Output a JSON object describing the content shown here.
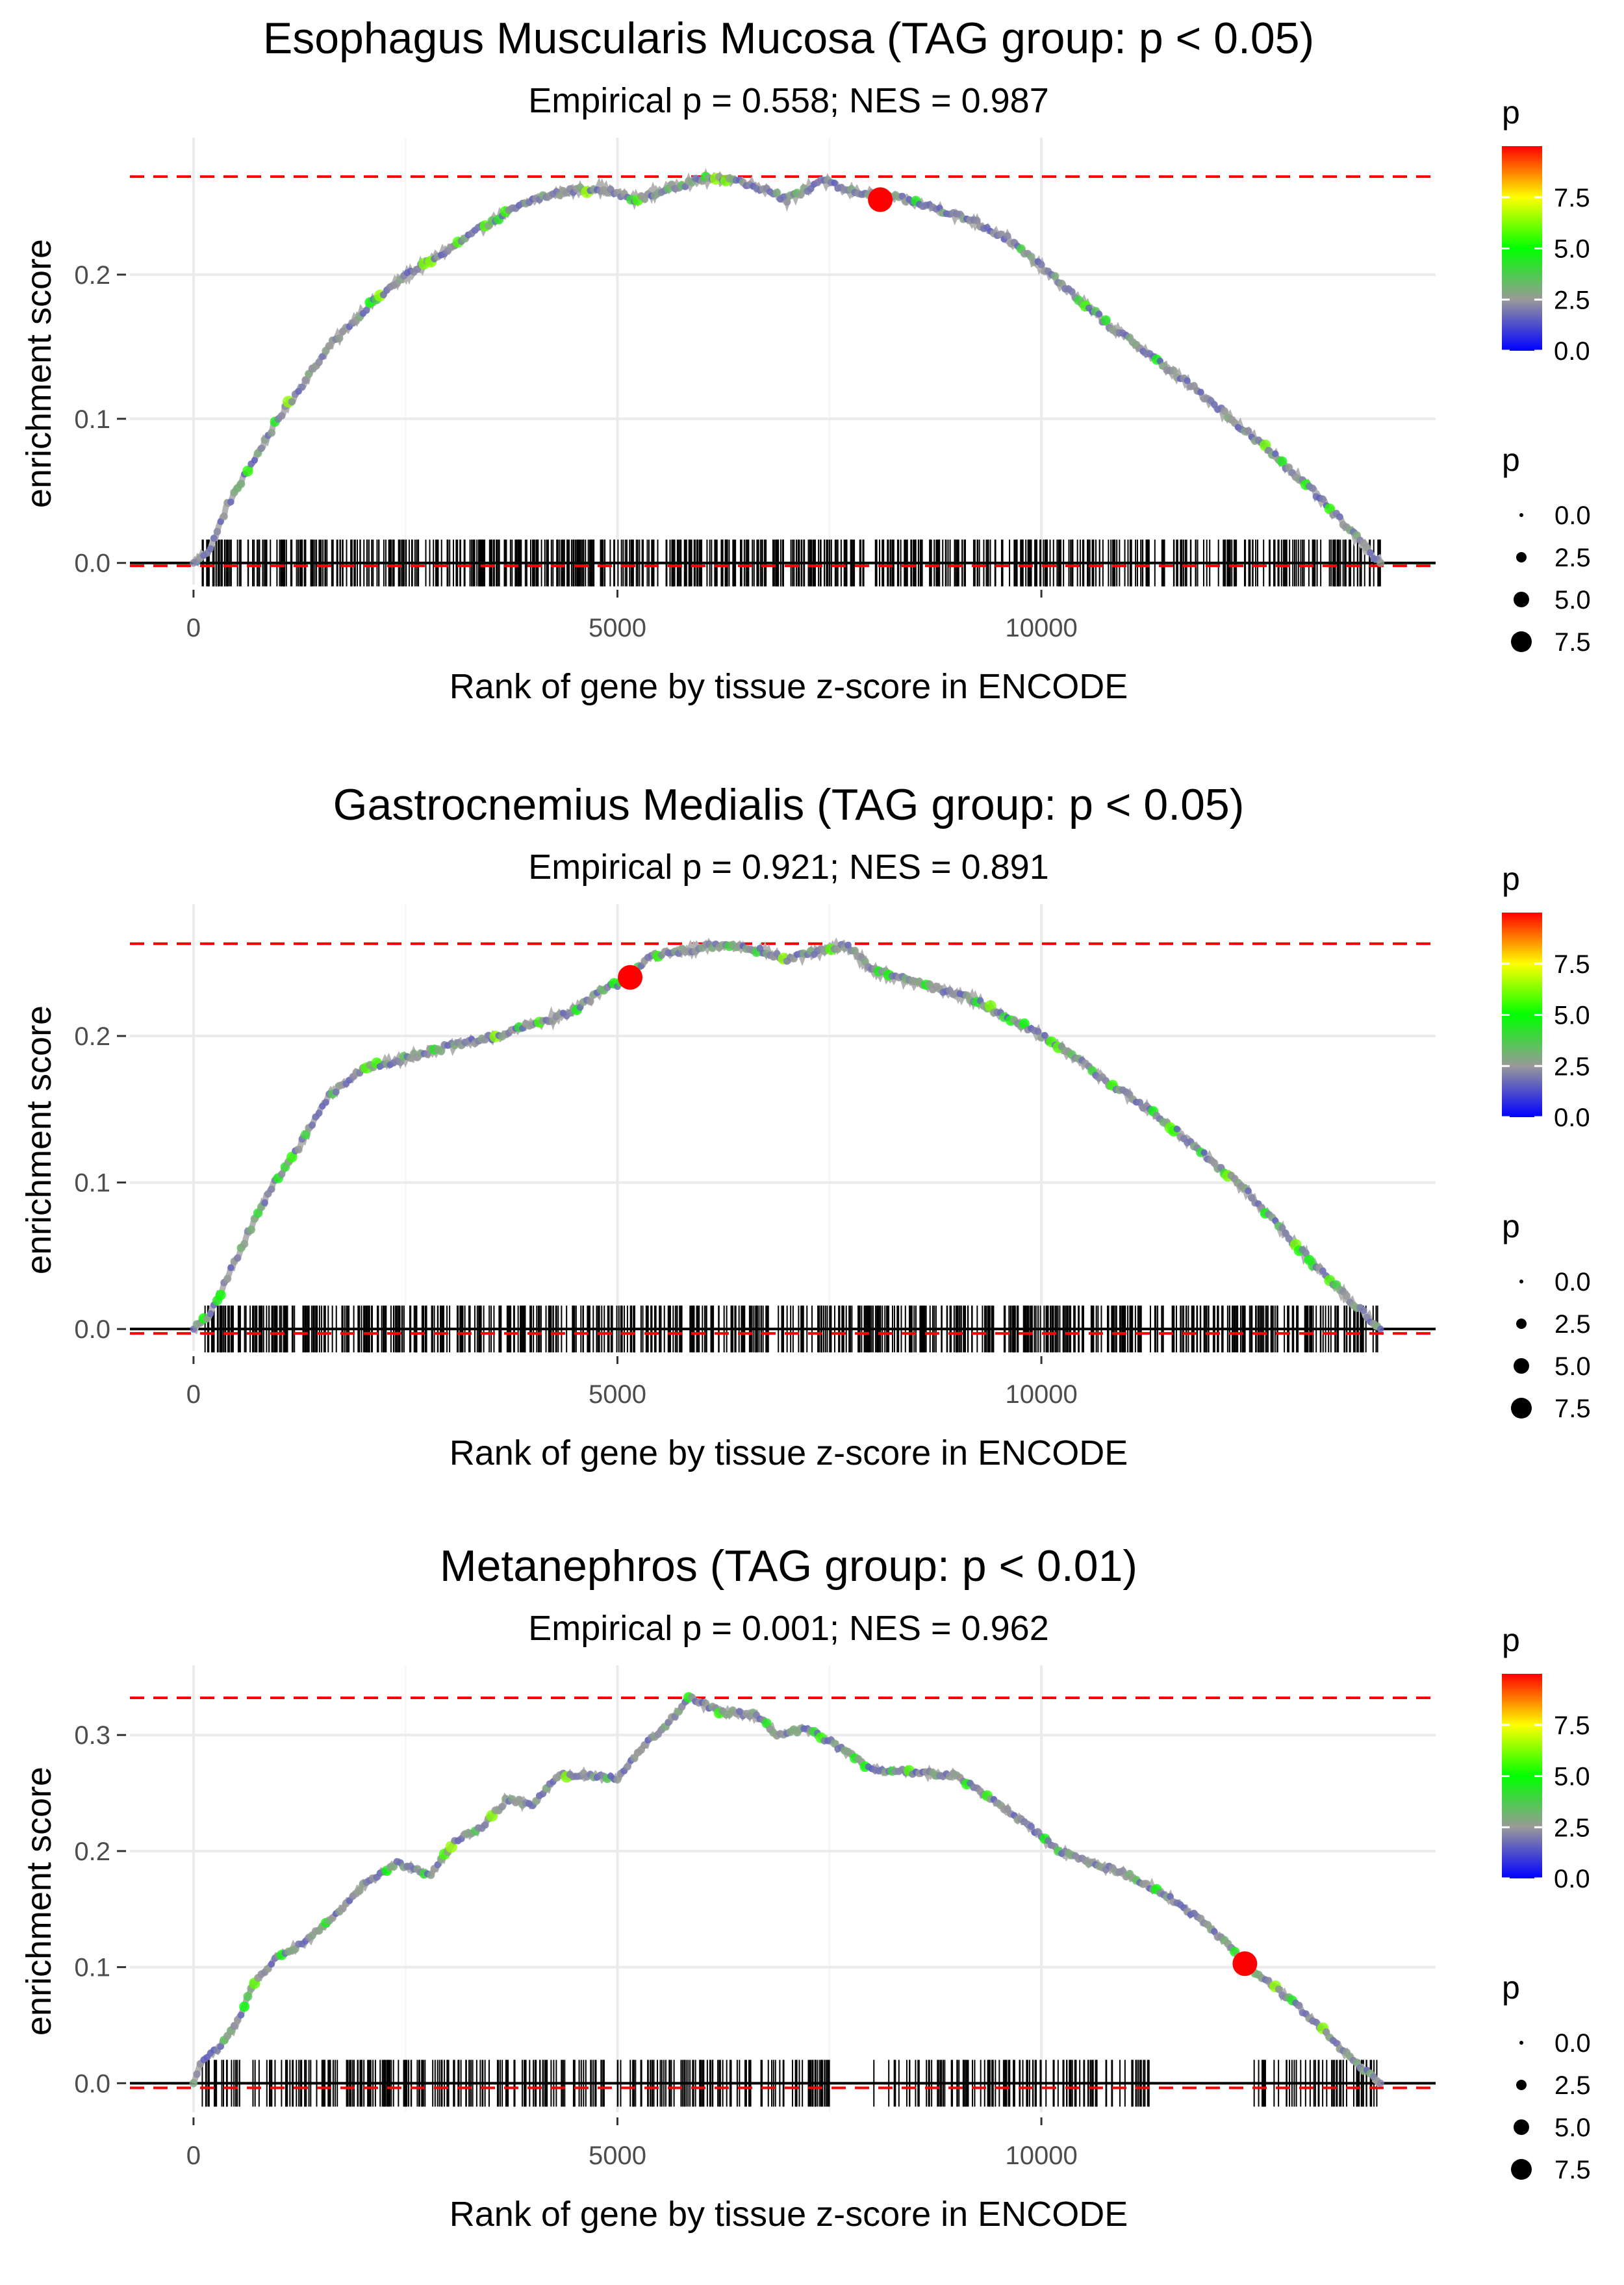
{
  "figure": {
    "description_free": true
  },
  "chart_data": [
    {
      "type": "line",
      "title": "Esophagus Muscularis Mucosa (TAG group: p < 0.05)",
      "subtitle": "Empirical p = 0.558; NES = 0.987",
      "xlabel": "Rank of gene by tissue z-score in ENCODE",
      "ylabel": "enrichment score",
      "xlim": [
        -750,
        14650
      ],
      "ylim": [
        -0.015,
        0.295
      ],
      "x_ticks": [
        0,
        5000,
        10000
      ],
      "x_tick_labels": [
        "0",
        "5000",
        "10000"
      ],
      "y_ticks": [
        0.0,
        0.1,
        0.2
      ],
      "y_tick_labels": [
        "0.0",
        "0.1",
        "0.2"
      ],
      "max_es": 0.268,
      "min_es": -0.002,
      "leading_edge_point": {
        "x": 8100,
        "y": 0.252
      },
      "series": [
        {
          "name": "enrichment score",
          "x": [
            0,
            200,
            400,
            700,
            1000,
            1300,
            1600,
            2000,
            2400,
            2800,
            3200,
            3600,
            4000,
            4400,
            4800,
            5200,
            5600,
            6000,
            6400,
            6800,
            7000,
            7200,
            7400,
            7700,
            8000,
            8400,
            8800,
            9200,
            9600,
            10000,
            10400,
            10800,
            11200,
            11600,
            12000,
            12400,
            12800,
            13200,
            13600,
            14000
          ],
          "y": [
            0.0,
            0.01,
            0.04,
            0.07,
            0.1,
            0.125,
            0.15,
            0.175,
            0.195,
            0.21,
            0.225,
            0.24,
            0.252,
            0.258,
            0.26,
            0.252,
            0.26,
            0.266,
            0.266,
            0.258,
            0.252,
            0.258,
            0.266,
            0.258,
            0.256,
            0.252,
            0.245,
            0.237,
            0.225,
            0.205,
            0.185,
            0.165,
            0.148,
            0.13,
            0.112,
            0.092,
            0.072,
            0.05,
            0.025,
            0.0
          ]
        }
      ],
      "gene_ticks": {
        "start": 100,
        "end": 14000,
        "count": 700,
        "gaps": []
      },
      "legend_color": {
        "title": "p",
        "ticks": [
          "0.0",
          "2.5",
          "5.0",
          "7.5"
        ],
        "range": [
          0,
          10
        ],
        "colors": [
          "#0000ff",
          "#999999",
          "#00ff00",
          "#ffff00",
          "#ff0000"
        ]
      },
      "legend_size": {
        "title": "p",
        "labels": [
          "0.0",
          "2.5",
          "5.0",
          "7.5"
        ]
      }
    },
    {
      "type": "line",
      "title": "Gastrocnemius Medialis (TAG group: p < 0.05)",
      "subtitle": "Empirical p = 0.921; NES = 0.891",
      "xlabel": "Rank of gene by tissue z-score in ENCODE",
      "ylabel": "enrichment score",
      "xlim": [
        -750,
        14650
      ],
      "ylim": [
        -0.015,
        0.29
      ],
      "x_ticks": [
        0,
        5000,
        10000
      ],
      "x_tick_labels": [
        "0",
        "5000",
        "10000"
      ],
      "y_ticks": [
        0.0,
        0.1,
        0.2
      ],
      "y_tick_labels": [
        "0.0",
        "0.1",
        "0.2"
      ],
      "max_es": 0.263,
      "min_es": -0.003,
      "leading_edge_point": {
        "x": 5150,
        "y": 0.24
      },
      "series": [
        {
          "name": "enrichment score",
          "x": [
            0,
            200,
            400,
            600,
            900,
            1200,
            1600,
            2000,
            2400,
            2800,
            3200,
            3600,
            4000,
            4400,
            4800,
            5150,
            5400,
            5800,
            6200,
            6600,
            7000,
            7400,
            7700,
            8000,
            8400,
            8800,
            9200,
            9600,
            10000,
            10400,
            10800,
            11200,
            11600,
            12000,
            12400,
            12800,
            13200,
            13600,
            14000
          ],
          "y": [
            0.0,
            0.01,
            0.035,
            0.06,
            0.095,
            0.12,
            0.16,
            0.178,
            0.183,
            0.19,
            0.195,
            0.2,
            0.208,
            0.215,
            0.23,
            0.24,
            0.255,
            0.258,
            0.262,
            0.26,
            0.252,
            0.258,
            0.262,
            0.245,
            0.238,
            0.232,
            0.225,
            0.213,
            0.2,
            0.185,
            0.168,
            0.152,
            0.135,
            0.115,
            0.095,
            0.07,
            0.045,
            0.022,
            0.0
          ]
        }
      ],
      "gene_ticks": {
        "start": 100,
        "end": 14000,
        "count": 700,
        "gaps": []
      },
      "legend_color": {
        "title": "p",
        "ticks": [
          "0.0",
          "2.5",
          "5.0",
          "7.5"
        ],
        "range": [
          0,
          10
        ],
        "colors": [
          "#0000ff",
          "#999999",
          "#00ff00",
          "#ffff00",
          "#ff0000"
        ]
      },
      "legend_size": {
        "title": "p",
        "labels": [
          "0.0",
          "2.5",
          "5.0",
          "7.5"
        ]
      }
    },
    {
      "type": "line",
      "title": "Metanephros (TAG group: p < 0.01)",
      "subtitle": "Empirical p = 0.001; NES = 0.962",
      "xlabel": "Rank of gene by tissue z-score in ENCODE",
      "ylabel": "enrichment score",
      "xlim": [
        -750,
        14650
      ],
      "ylim": [
        -0.025,
        0.36
      ],
      "x_ticks": [
        0,
        5000,
        10000
      ],
      "x_tick_labels": [
        "0",
        "5000",
        "10000"
      ],
      "y_ticks": [
        0.0,
        0.1,
        0.2,
        0.3
      ],
      "y_tick_labels": [
        "0.0",
        "0.1",
        "0.2",
        "0.3"
      ],
      "max_es": 0.332,
      "min_es": -0.004,
      "leading_edge_point": {
        "x": 12400,
        "y": 0.103
      },
      "series": [
        {
          "name": "enrichment score",
          "x": [
            0,
            100,
            300,
            500,
            700,
            1000,
            1300,
            1600,
            2000,
            2400,
            2800,
            3100,
            3400,
            3700,
            4000,
            4300,
            4700,
            5000,
            5300,
            5600,
            5850,
            6200,
            6600,
            6900,
            7200,
            7500,
            7800,
            8000,
            8500,
            9000,
            9400,
            9800,
            10200,
            10600,
            11000,
            11400,
            11800,
            12200,
            12400,
            12800,
            13200,
            13600,
            14000
          ],
          "y": [
            0.0,
            0.02,
            0.03,
            0.05,
            0.085,
            0.11,
            0.12,
            0.14,
            0.17,
            0.19,
            0.18,
            0.21,
            0.22,
            0.245,
            0.24,
            0.265,
            0.265,
            0.262,
            0.29,
            0.31,
            0.332,
            0.32,
            0.318,
            0.3,
            0.305,
            0.295,
            0.28,
            0.27,
            0.268,
            0.265,
            0.245,
            0.225,
            0.2,
            0.19,
            0.18,
            0.165,
            0.145,
            0.12,
            0.103,
            0.08,
            0.055,
            0.025,
            0.0
          ]
        }
      ],
      "gene_ticks": {
        "start": 100,
        "end": 14000,
        "count": 520,
        "gaps": [
          [
            7600,
            8000
          ],
          [
            11300,
            12500
          ]
        ]
      },
      "legend_color": {
        "title": "p",
        "ticks": [
          "0.0",
          "2.5",
          "5.0",
          "7.5"
        ],
        "range": [
          0,
          10
        ],
        "colors": [
          "#0000ff",
          "#999999",
          "#00ff00",
          "#ffff00",
          "#ff0000"
        ]
      },
      "legend_size": {
        "title": "p",
        "labels": [
          "0.0",
          "2.5",
          "5.0",
          "7.5"
        ]
      }
    }
  ]
}
